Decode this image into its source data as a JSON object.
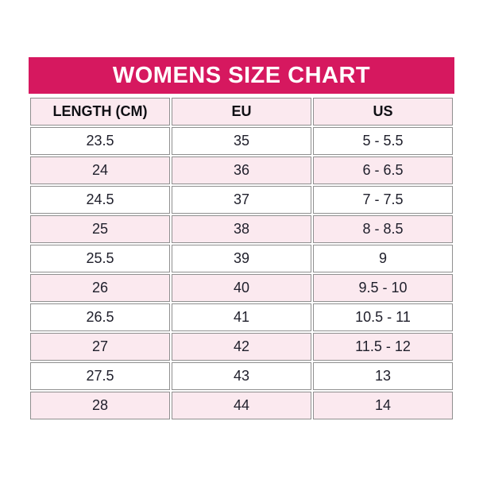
{
  "title": "WOMENS SIZE CHART",
  "colors": {
    "title_bg": "#d6185f",
    "title_text": "#ffffff",
    "row_alt_bg": "#fbe9ef",
    "row_bg": "#ffffff",
    "border": "#8f8f8f",
    "cell_text": "#20202c",
    "header_text": "#0f0f14"
  },
  "chart_data": {
    "type": "table",
    "title": "WOMENS SIZE CHART",
    "columns": [
      "LENGTH (CM)",
      "EU",
      "US"
    ],
    "rows": [
      [
        "23.5",
        "35",
        "5 - 5.5"
      ],
      [
        "24",
        "36",
        "6 - 6.5"
      ],
      [
        "24.5",
        "37",
        "7 - 7.5"
      ],
      [
        "25",
        "38",
        "8 - 8.5"
      ],
      [
        "25.5",
        "39",
        "9"
      ],
      [
        "26",
        "40",
        "9.5 - 10"
      ],
      [
        "26.5",
        "41",
        "10.5 - 11"
      ],
      [
        "27",
        "42",
        "11.5 - 12"
      ],
      [
        "27.5",
        "43",
        "13"
      ],
      [
        "28",
        "44",
        "14"
      ]
    ]
  }
}
